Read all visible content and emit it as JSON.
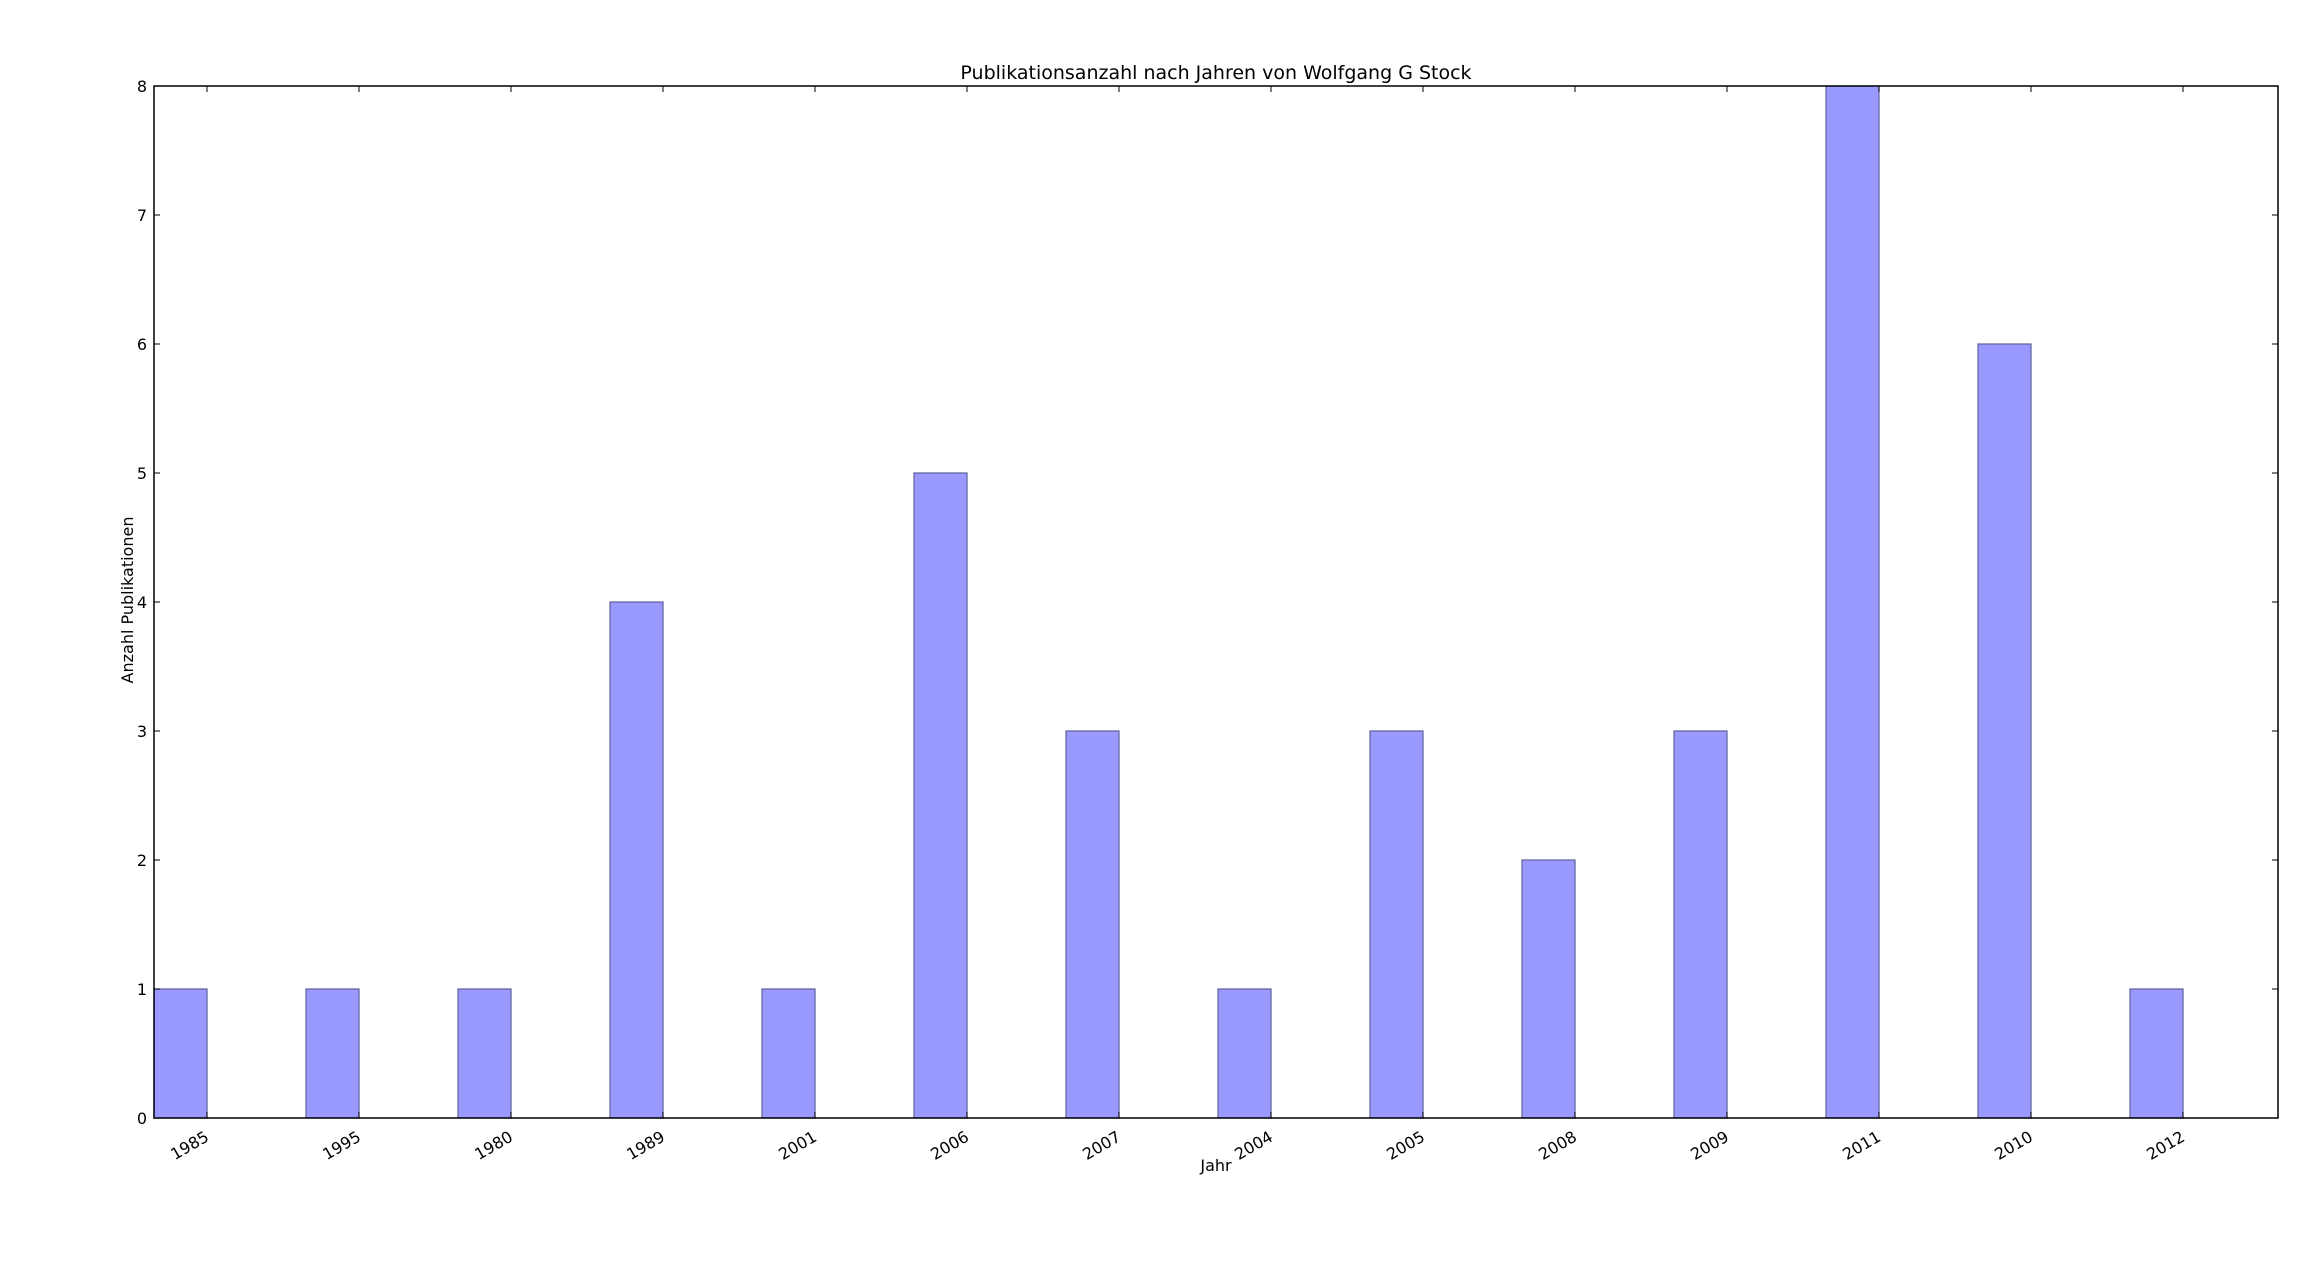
{
  "chart_data": {
    "type": "bar",
    "title": "Publikationsanzahl nach Jahren von Wolfgang G Stock",
    "xlabel": "Jahr",
    "ylabel": "Anzahl Publikationen",
    "categories": [
      "1985",
      "1995",
      "1980",
      "1989",
      "2001",
      "2006",
      "2007",
      "2004",
      "2005",
      "2008",
      "2009",
      "2011",
      "2010",
      "2012"
    ],
    "values": [
      1,
      1,
      1,
      4,
      1,
      5,
      3,
      1,
      3,
      2,
      3,
      8,
      6,
      1
    ],
    "ylim": [
      0,
      8
    ],
    "yticks": [
      "0",
      "1",
      "2",
      "3",
      "4",
      "5",
      "6",
      "7",
      "8"
    ],
    "grid": false,
    "legend": "none",
    "colors": {
      "bar_fill": "#9999ff",
      "bar_edge": "#5f5f99",
      "axes": "#000000"
    }
  }
}
